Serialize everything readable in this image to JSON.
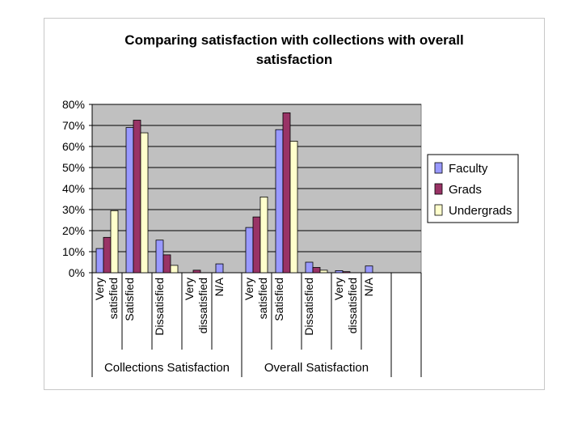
{
  "chart_data": {
    "type": "bar",
    "title_lines": [
      "Comparing satisfaction with collections with overall",
      "satisfaction"
    ],
    "xlabel": "",
    "ylabel": "",
    "ylim": [
      0,
      0.8
    ],
    "yticks": [
      "0%",
      "10%",
      "20%",
      "30%",
      "40%",
      "50%",
      "60%",
      "70%",
      "80%"
    ],
    "grid": true,
    "legend_position": "right",
    "groups": [
      {
        "name": "Collections Satisfaction",
        "categories": [
          [
            "Very",
            "satisfied"
          ],
          [
            "Satisfied"
          ],
          [
            "Dissatisfied"
          ],
          [
            "Very",
            "dissatisfied"
          ],
          [
            "N/A"
          ]
        ]
      },
      {
        "name": "Overall Satisfaction",
        "categories": [
          [
            "Very",
            "satisfied"
          ],
          [
            "Satisfied"
          ],
          [
            "Dissatisfied"
          ],
          [
            "Very",
            "dissatisfied"
          ],
          [
            "N/A"
          ]
        ]
      }
    ],
    "series": [
      {
        "name": "Faculty",
        "color": "#9999ff",
        "values": [
          0.115,
          0.69,
          0.155,
          0.0,
          0.042,
          0.215,
          0.68,
          0.05,
          0.01,
          0.032
        ]
      },
      {
        "name": "Grads",
        "color": "#993366",
        "values": [
          0.168,
          0.725,
          0.085,
          0.012,
          0.0,
          0.265,
          0.76,
          0.025,
          0.005,
          0.0
        ]
      },
      {
        "name": "Undergrads",
        "color": "#ffffcc",
        "values": [
          0.295,
          0.665,
          0.035,
          0.0,
          0.0,
          0.36,
          0.625,
          0.012,
          0.0,
          0.0
        ]
      }
    ],
    "plot_background": "#c0c0c0"
  }
}
